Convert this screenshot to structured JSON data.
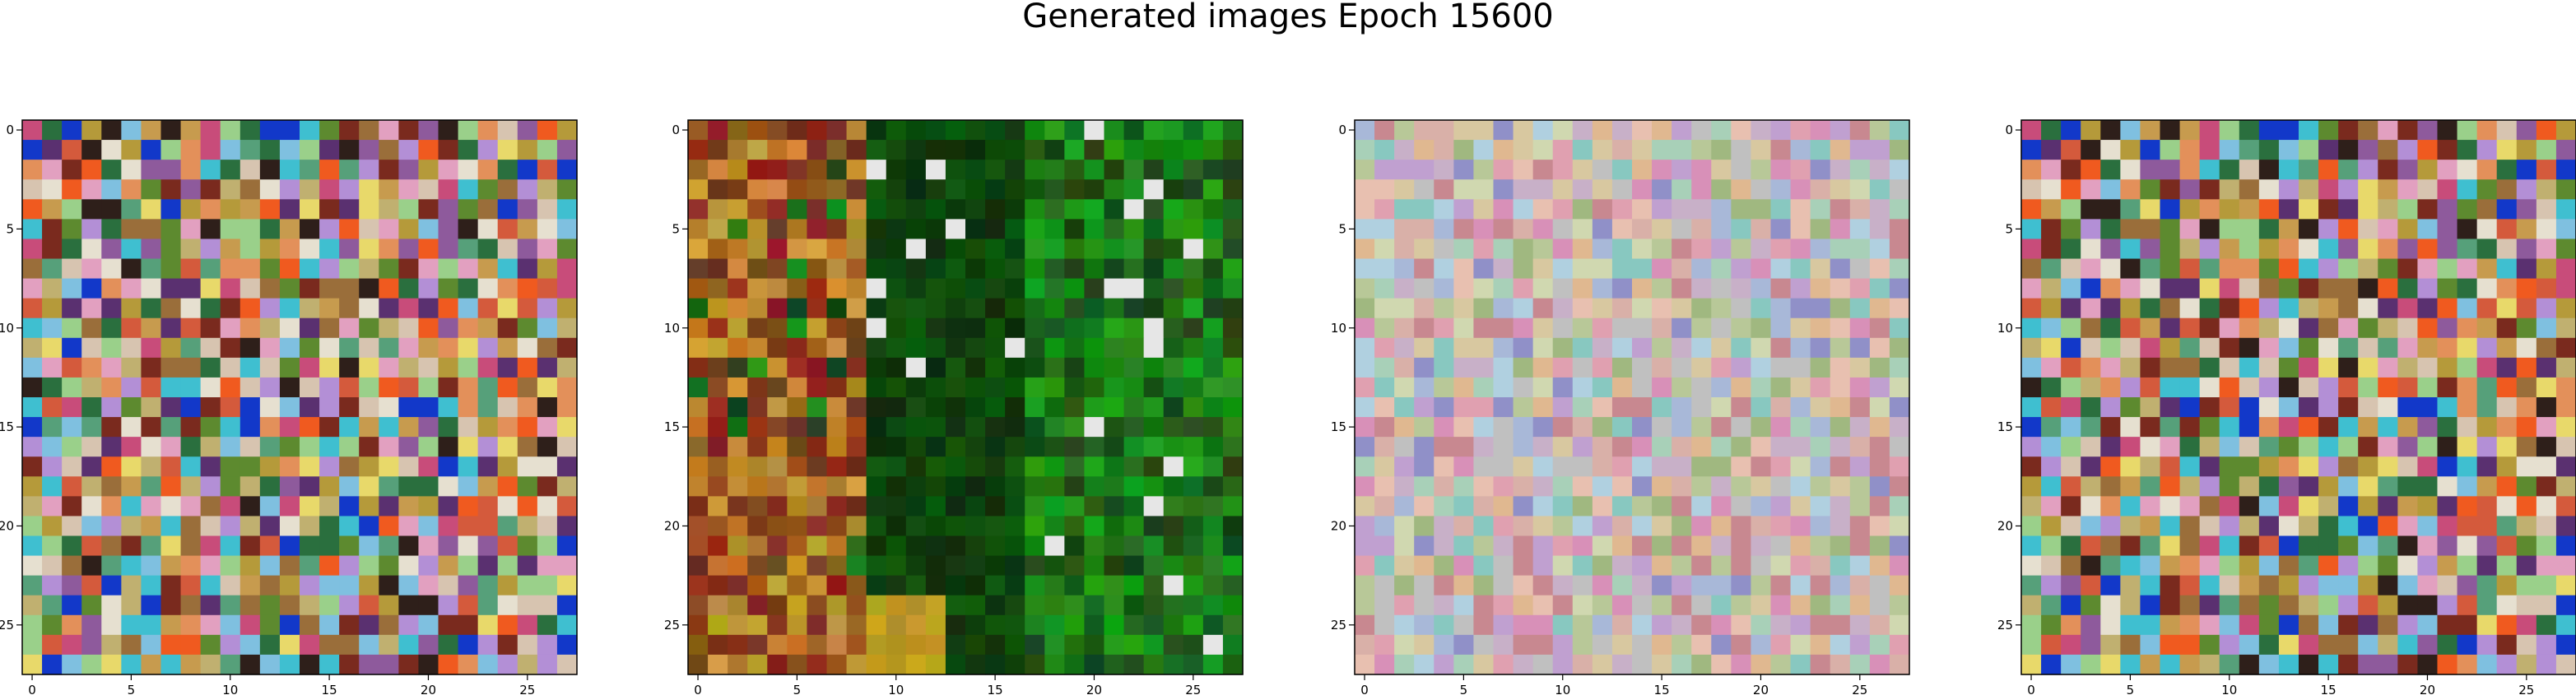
{
  "figure": {
    "title": "Generated images Epoch 15600"
  },
  "chart_data": [
    {
      "type": "heatmap",
      "variant": "rgb-image",
      "title": "",
      "grid_size": 28,
      "xticks": [
        0,
        5,
        10,
        15,
        20,
        25
      ],
      "yticks": [
        0,
        5,
        10,
        15,
        20,
        25
      ],
      "style": "colorful-noise",
      "palette": [
        "#e3905a",
        "#b59a3a",
        "#c79b4e",
        "#8e5a9c",
        "#56a07a",
        "#c84c7a",
        "#2a6f3e",
        "#d7c4b0",
        "#1238c9",
        "#7a2a1e",
        "#e8d96a",
        "#9a6e3a",
        "#3fbfd0",
        "#f05a1f",
        "#b38fd6",
        "#5d8a2f",
        "#e2a0c0",
        "#2e1f1a",
        "#9ad08a",
        "#d45a3c",
        "#7fc0e0",
        "#c0b070",
        "#5a3070",
        "#e6e0d0"
      ],
      "seed": 11
    },
    {
      "type": "heatmap",
      "variant": "rgb-image",
      "title": "",
      "grid_size": 28,
      "xticks": [
        0,
        5,
        10,
        15,
        20,
        25
      ],
      "yticks": [
        0,
        5,
        10,
        15,
        20,
        25
      ],
      "style": "green-right-brown-left",
      "seed": 23
    },
    {
      "type": "heatmap",
      "variant": "rgb-image",
      "title": "",
      "grid_size": 28,
      "xticks": [
        0,
        5,
        10,
        15,
        20,
        25
      ],
      "yticks": [
        0,
        5,
        10,
        15,
        20,
        25
      ],
      "style": "pastel-noise",
      "palette": [
        "#d9b0a8",
        "#c8b0c8",
        "#b8c898",
        "#e0a0b0",
        "#a8b8d8",
        "#d8c8a0",
        "#c0a0d0",
        "#a8d0b8",
        "#e8c0b0",
        "#9090c8",
        "#d0d8b0",
        "#c88890",
        "#b0d0e0",
        "#e0b890",
        "#a0b880",
        "#c0c0c0",
        "#d890b8",
        "#88c8c0"
      ],
      "seed": 37
    },
    {
      "type": "heatmap",
      "variant": "rgb-image",
      "title": "",
      "grid_size": 28,
      "xticks": [
        0,
        5,
        10,
        15,
        20,
        25
      ],
      "yticks": [
        0,
        5,
        10,
        15,
        20,
        25
      ],
      "style": "colorful-noise",
      "palette": [
        "#e3905a",
        "#b59a3a",
        "#c79b4e",
        "#8e5a9c",
        "#56a07a",
        "#c84c7a",
        "#2a6f3e",
        "#d7c4b0",
        "#1238c9",
        "#7a2a1e",
        "#e8d96a",
        "#9a6e3a",
        "#3fbfd0",
        "#f05a1f",
        "#b38fd6",
        "#5d8a2f",
        "#e2a0c0",
        "#2e1f1a",
        "#9ad08a",
        "#d45a3c",
        "#7fc0e0",
        "#c0b070",
        "#5a3070",
        "#e6e0d0"
      ],
      "seed": 11
    }
  ]
}
